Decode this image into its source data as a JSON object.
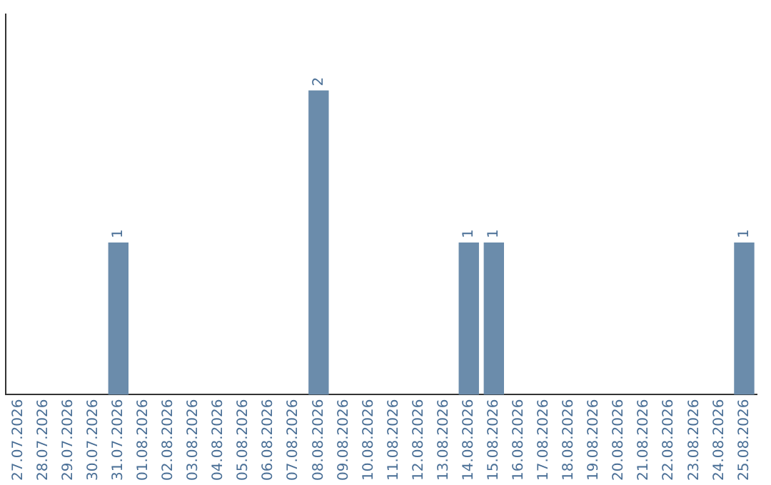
{
  "chart_data": {
    "type": "bar",
    "categories": [
      "27.07.2026",
      "28.07.2026",
      "29.07.2026",
      "30.07.2026",
      "31.07.2026",
      "01.08.2026",
      "02.08.2026",
      "03.08.2026",
      "04.08.2026",
      "05.08.2026",
      "06.08.2026",
      "07.08.2026",
      "08.08.2026",
      "09.08.2026",
      "10.08.2026",
      "11.08.2026",
      "12.08.2026",
      "13.08.2026",
      "14.08.2026",
      "15.08.2026",
      "16.08.2026",
      "17.08.2026",
      "18.08.2026",
      "19.08.2026",
      "20.08.2026",
      "21.08.2026",
      "22.08.2026",
      "23.08.2026",
      "24.08.2026",
      "25.08.2026"
    ],
    "values": [
      0,
      0,
      0,
      0,
      1,
      0,
      0,
      0,
      0,
      0,
      0,
      0,
      2,
      0,
      0,
      0,
      0,
      0,
      1,
      1,
      0,
      0,
      0,
      0,
      0,
      0,
      0,
      0,
      0,
      1
    ],
    "value_labels": [
      null,
      null,
      null,
      null,
      "1",
      null,
      null,
      null,
      null,
      null,
      null,
      null,
      "2",
      null,
      null,
      null,
      null,
      null,
      "1",
      "1",
      null,
      null,
      null,
      null,
      null,
      null,
      null,
      null,
      null,
      "1"
    ],
    "color": "#6b8cab",
    "grid": false,
    "legend": false
  }
}
